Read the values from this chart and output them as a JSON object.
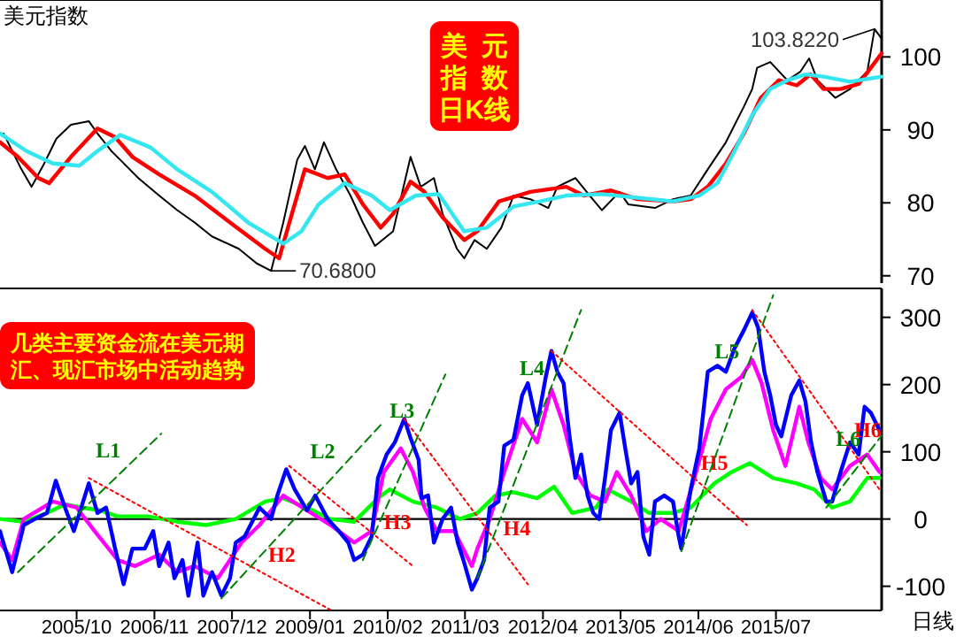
{
  "chart_data": [
    {
      "type": "line",
      "title": "美元指数",
      "xlim": [
        "2004-09-06",
        "2016-12-20"
      ],
      "ylim": [
        69,
        107.8
      ],
      "yticks": [
        70,
        80,
        90,
        100
      ],
      "tick_labels": "y",
      "annotations": [
        "美元指数日K线",
        {
          "text": "70.6800",
          "x": "2008-06-17",
          "y": 70.68
        },
        {
          "text": "103.8220",
          "x": "2016-11-14",
          "y": 103.822
        }
      ],
      "series": [
        {
          "color": "#000000",
          "x": [
            "2004-09-24",
            "2004-12-24",
            "2005-02-14",
            "2005-04-19",
            "2005-06-20",
            "2005-09-02",
            "2005-12-02",
            "2006-01-15",
            "2006-03-27",
            "2006-05-11",
            "2006-08-11",
            "2006-11-25",
            "2007-02-25",
            "2007-05-25",
            "2007-08-21",
            "2008-01-05",
            "2008-04-05",
            "2008-06-17",
            "2008-08-18",
            "2008-10-28",
            "2008-12-06",
            "2009-01-26",
            "2009-03-13",
            "2009-05-14",
            "2009-07-26",
            "2009-09-27",
            "2009-11-28",
            "2010-02-28",
            "2010-05-28",
            "2010-07-19",
            "2010-09-24",
            "2010-11-07",
            "2011-01-19",
            "2011-02-25",
            "2011-04-19",
            "2011-06-20",
            "2011-09-02",
            "2011-11-03",
            "2012-01-28",
            "2012-04-28",
            "2012-06-13",
            "2012-09-13",
            "2012-11-25",
            "2013-01-26",
            "2013-04-26",
            "2013-06-09",
            "2013-10-23",
            "2014-01-23",
            "2014-04-23",
            "2014-07-19",
            "2014-10-19",
            "2015-01-19",
            "2015-03-02",
            "2015-03-27",
            "2015-06-02",
            "2015-08-28",
            "2015-11-03",
            "2015-12-17",
            "2016-01-28",
            "2016-04-28",
            "2016-07-12",
            "2016-10-08",
            "2016-11-14",
            "2016-12-20"
          ],
          "values": [
            89.5,
            84.6,
            82.2,
            85.4,
            88.8,
            90.7,
            91.2,
            89.5,
            87.1,
            85.9,
            83.4,
            81.0,
            79.0,
            77.3,
            75.4,
            73.7,
            71.7,
            70.68,
            77.3,
            85.9,
            87.8,
            84.6,
            88.3,
            84.6,
            81.0,
            77.3,
            74.1,
            76.1,
            86.3,
            82.2,
            83.4,
            78.5,
            73.7,
            72.4,
            74.9,
            73.7,
            76.6,
            81.0,
            80.5,
            79.3,
            82.2,
            83.4,
            81.0,
            79.0,
            81.5,
            79.8,
            79.3,
            80.5,
            81.0,
            84.6,
            88.3,
            93.2,
            95.6,
            98.5,
            99.3,
            96.8,
            98.0,
            99.8,
            96.8,
            94.4,
            95.6,
            98.0,
            103.822,
            102.5
          ]
        },
        {
          "color": "#ff0000",
          "x": [
            "2004-09-06",
            "2004-12-06",
            "2005-03-20",
            "2005-05-14",
            "2005-09-02",
            "2006-01-15",
            "2006-04-15",
            "2006-07-12",
            "2006-11-25",
            "2007-05-25",
            "2007-11-21",
            "2008-05-18",
            "2008-07-28",
            "2008-10-01",
            "2008-12-06",
            "2009-04-01",
            "2009-06-27",
            "2009-09-27",
            "2009-12-27",
            "2010-02-28",
            "2010-05-28",
            "2010-08-07",
            "2010-11-07",
            "2011-02-25",
            "2011-05-03",
            "2011-08-21",
            "2012-01-28",
            "2012-07-28",
            "2012-10-26",
            "2013-03-13",
            "2013-07-26",
            "2014-01-23",
            "2014-04-23",
            "2014-07-19",
            "2014-10-19",
            "2015-01-19",
            "2015-04-15",
            "2015-07-15",
            "2015-10-15",
            "2015-12-24",
            "2016-02-28",
            "2016-05-25",
            "2016-08-25",
            "2016-10-26",
            "2016-12-20"
          ],
          "values": [
            88.3,
            86.3,
            83.4,
            82.7,
            86.3,
            90.2,
            89.0,
            86.3,
            83.9,
            81.0,
            77.3,
            73.7,
            72.4,
            78.5,
            84.6,
            83.4,
            83.9,
            79.8,
            76.6,
            78.5,
            82.9,
            81.5,
            78.0,
            74.9,
            76.1,
            80.2,
            81.5,
            82.2,
            81.0,
            81.7,
            80.5,
            80.2,
            80.5,
            82.2,
            85.4,
            89.5,
            94.4,
            96.8,
            96.1,
            97.6,
            95.6,
            95.6,
            96.3,
            98.5,
            100.5
          ]
        },
        {
          "color": "#33e6f0",
          "x": [
            "2004-09-06",
            "2005-01-19",
            "2005-06-02",
            "2005-10-15",
            "2006-01-15",
            "2006-05-11",
            "2006-10-12",
            "2007-02-25",
            "2007-08-21",
            "2008-02-21",
            "2008-08-18",
            "2008-11-18",
            "2009-02-14",
            "2009-06-27",
            "2009-11-11",
            "2010-02-11",
            "2010-06-24",
            "2010-10-19",
            "2011-02-25",
            "2011-06-20",
            "2011-11-03",
            "2012-03-17",
            "2012-07-28",
            "2013-01-26",
            "2013-07-26",
            "2014-01-23",
            "2014-06-06",
            "2014-09-06",
            "2014-12-02",
            "2015-03-02",
            "2015-06-02",
            "2015-08-28",
            "2015-11-28",
            "2016-02-28",
            "2016-07-12",
            "2016-12-20"
          ],
          "values": [
            89.5,
            87.1,
            85.4,
            85.1,
            87.1,
            89.3,
            87.6,
            84.6,
            81.5,
            77.3,
            74.4,
            76.1,
            79.8,
            82.7,
            81.0,
            79.0,
            81.0,
            81.2,
            76.1,
            76.6,
            79.5,
            80.2,
            81.0,
            81.2,
            80.7,
            80.2,
            81.0,
            82.7,
            87.1,
            92.0,
            95.6,
            96.8,
            97.6,
            97.3,
            96.6,
            97.3
          ]
        }
      ]
    },
    {
      "type": "line",
      "title": "几类主要资金流在美元期汇、现汇市场中活动趋势",
      "xlim": [
        "2004-09-06",
        "2016-12-20"
      ],
      "ylim": [
        -136,
        343
      ],
      "yticks": [
        -100,
        0,
        100,
        200,
        300
      ],
      "xticks": [
        {
          "value": "2005-10",
          "label": "2005/10"
        },
        {
          "value": "2006-11",
          "label": "2006/11"
        },
        {
          "value": "2007-12",
          "label": "2007/12"
        },
        {
          "value": "2009-01",
          "label": "2009/01"
        },
        {
          "value": "2010-02",
          "label": "2010/02"
        },
        {
          "value": "2011-03",
          "label": "2011/03"
        },
        {
          "value": "2012-04",
          "label": "2012/04"
        },
        {
          "value": "2013-05",
          "label": "2013/05"
        },
        {
          "value": "2014-06",
          "label": "2014/06"
        },
        {
          "value": "2015-07",
          "label": "2015/07"
        }
      ],
      "annotations": [
        "日线"
      ],
      "ref_lines": [
        {
          "axis": "y",
          "value": 0,
          "color": "#000000"
        }
      ],
      "series": [
        {
          "color": "#00ff00",
          "x": [
            "2004-09-06",
            "2005-01-05",
            "2005-05-03",
            "2005-08-03",
            "2005-10-28",
            "2006-01-28",
            "2006-04-28",
            "2006-09-27",
            "2007-02-25",
            "2007-07-23",
            "2007-12-20",
            "2008-05-18",
            "2008-08-18",
            "2008-12-17",
            "2009-04-15",
            "2009-08-14",
            "2009-12-13",
            "2010-02-11",
            "2010-06-09",
            "2010-10-08",
            "2011-02-03",
            "2011-05-03",
            "2011-08-03",
            "2011-11-03",
            "2012-03-02",
            "2012-05-28",
            "2012-08-28",
            "2012-12-27",
            "2013-02-25",
            "2013-06-24",
            "2013-09-24",
            "2014-01-23",
            "2014-04-23",
            "2014-08-21",
            "2014-11-18",
            "2015-02-18",
            "2015-06-17",
            "2015-10-15",
            "2016-01-12",
            "2016-04-12",
            "2016-07-12",
            "2016-10-08",
            "2016-12-09"
          ],
          "values": [
            0,
            -4,
            9,
            22,
            17,
            13,
            4,
            4,
            -4,
            -9,
            0,
            26,
            31,
            17,
            0,
            -4,
            31,
            44,
            26,
            17,
            0,
            9,
            35,
            40,
            31,
            48,
            9,
            17,
            44,
            26,
            9,
            9,
            17,
            53,
            70,
            83,
            61,
            53,
            44,
            17,
            26,
            61,
            61
          ]
        },
        {
          "color": "#ff00ff",
          "x": [
            "2004-09-06",
            "2004-11-07",
            "2005-01-05",
            "2005-06-02",
            "2005-10-01",
            "2006-01-01",
            "2006-04-28",
            "2006-07-26",
            "2006-11-25",
            "2007-02-25",
            "2007-05-25",
            "2007-09-20",
            "2008-01-19",
            "2008-04-19",
            "2008-08-18",
            "2008-12-17",
            "2009-04-15",
            "2009-08-14",
            "2009-11-11",
            "2010-01-12",
            "2010-04-08",
            "2010-06-09",
            "2010-08-07",
            "2010-10-08",
            "2011-01-05",
            "2011-04-05",
            "2011-05-03",
            "2011-07-05",
            "2011-09-17",
            "2011-12-17",
            "2012-03-02",
            "2012-05-14",
            "2012-07-15",
            "2012-09-13",
            "2012-11-28",
            "2013-02-11",
            "2013-04-12",
            "2013-06-24",
            "2013-09-09",
            "2013-11-21",
            "2014-02-21",
            "2014-05-21",
            "2014-08-03",
            "2014-10-19",
            "2015-01-05",
            "2015-03-02",
            "2015-04-19",
            "2015-06-17",
            "2015-08-18",
            "2015-10-28",
            "2015-12-13",
            "2016-02-14",
            "2016-04-12",
            "2016-07-12",
            "2016-10-08",
            "2016-12-09"
          ],
          "values": [
            -35,
            -61,
            0,
            26,
            17,
            -18,
            -61,
            -70,
            -53,
            -79,
            -70,
            -88,
            -35,
            -9,
            35,
            13,
            -9,
            -35,
            -18,
            70,
            105,
            70,
            17,
            -18,
            -18,
            -70,
            -44,
            0,
            70,
            149,
            114,
            193,
            140,
            70,
            35,
            26,
            70,
            35,
            -18,
            0,
            -18,
            70,
            149,
            193,
            211,
            237,
            202,
            132,
            79,
            167,
            114,
            61,
            44,
            79,
            96,
            70
          ]
        },
        {
          "color": "#0000ff",
          "x": [
            "2004-09-06",
            "2004-11-07",
            "2005-01-05",
            "2005-03-02",
            "2005-05-03",
            "2005-06-17",
            "2005-08-03",
            "2005-09-17",
            "2005-12-02",
            "2006-01-15",
            "2006-02-28",
            "2006-04-15",
            "2006-05-28",
            "2006-07-12",
            "2006-09-13",
            "2006-10-26",
            "2006-11-25",
            "2007-01-12",
            "2007-02-11",
            "2007-03-24",
            "2007-04-23",
            "2007-06-09",
            "2007-07-08",
            "2007-08-21",
            "2007-10-08",
            "2007-11-21",
            "2007-12-20",
            "2008-02-03",
            "2008-04-19",
            "2008-06-17",
            "2008-07-19",
            "2008-09-02",
            "2008-10-15",
            "2008-12-17",
            "2009-01-28",
            "2009-04-01",
            "2009-05-28",
            "2009-07-15",
            "2009-08-14",
            "2009-09-27",
            "2009-11-11",
            "2009-12-13",
            "2010-01-26",
            "2010-03-09",
            "2010-04-26",
            "2010-05-25",
            "2010-07-08",
            "2010-07-23",
            "2010-08-25",
            "2010-09-24",
            "2010-11-07",
            "2010-12-20",
            "2011-01-23",
            "2011-02-21",
            "2011-04-05",
            "2011-05-03",
            "2011-06-06",
            "2011-07-05",
            "2011-08-18",
            "2011-09-17",
            "2011-11-03",
            "2011-12-17",
            "2012-01-15",
            "2012-03-02",
            "2012-04-15",
            "2012-05-14",
            "2012-06-13",
            "2012-07-15",
            "2012-08-14",
            "2012-09-13",
            "2012-10-12",
            "2012-11-14",
            "2012-12-13",
            "2013-01-12",
            "2013-02-11",
            "2013-03-13",
            "2013-04-26",
            "2013-05-25",
            "2013-06-24",
            "2013-07-26",
            "2013-08-25",
            "2013-09-24",
            "2013-10-23",
            "2013-12-09",
            "2014-01-23",
            "2014-02-21",
            "2014-03-06",
            "2014-04-23",
            "2014-06-06",
            "2014-07-19",
            "2014-09-06",
            "2014-10-19",
            "2014-12-02",
            "2015-01-19",
            "2015-03-02",
            "2015-04-01",
            "2015-05-03",
            "2015-06-02",
            "2015-07-01",
            "2015-07-28",
            "2015-09-17",
            "2015-10-28",
            "2015-11-28",
            "2015-12-27",
            "2016-01-28",
            "2016-03-13",
            "2016-04-12",
            "2016-05-25",
            "2016-07-12",
            "2016-08-25",
            "2016-09-24",
            "2016-10-26",
            "2016-12-09"
          ],
          "values": [
            -18,
            -79,
            -9,
            0,
            9,
            57,
            17,
            -18,
            53,
            9,
            17,
            -44,
            -97,
            -44,
            -44,
            -18,
            -70,
            -35,
            -88,
            -61,
            -114,
            -35,
            -114,
            -79,
            -114,
            -88,
            -35,
            -26,
            17,
            0,
            35,
            74,
            44,
            13,
            35,
            0,
            -18,
            -35,
            -61,
            -53,
            -26,
            61,
            96,
            114,
            149,
            123,
            88,
            31,
            35,
            -35,
            0,
            17,
            -35,
            -61,
            -105,
            -88,
            -61,
            17,
            26,
            109,
            118,
            184,
            202,
            140,
            211,
            250,
            219,
            202,
            123,
            61,
            96,
            35,
            9,
            0,
            61,
            132,
            158,
            105,
            53,
            70,
            -26,
            -53,
            26,
            35,
            26,
            -26,
            -44,
            44,
            105,
            219,
            228,
            219,
            254,
            281,
            307,
            285,
            219,
            184,
            140,
            123,
            184,
            206,
            175,
            114,
            70,
            26,
            26,
            70,
            114,
            96,
            167,
            158,
            132
          ]
        },
        {
          "name": "L1",
          "color": "#008000",
          "line_style": "dashed",
          "x": [
            "2004-12-06",
            "2006-12-06"
          ],
          "values": [
            -79,
            127
          ]
        },
        {
          "name": "H2",
          "color": "#ff0000",
          "line_style": "dotted",
          "x": [
            "2005-12-02",
            "2009-04-15"
          ],
          "values": [
            61,
            -135
          ]
        },
        {
          "name": "L2",
          "color": "#008000",
          "line_style": "dashed",
          "x": [
            "2007-10-08",
            "2009-12-27"
          ],
          "values": [
            -118,
            140
          ]
        },
        {
          "name": "H3",
          "color": "#ff0000",
          "line_style": "dotted",
          "x": [
            "2008-09-17",
            "2010-06-09"
          ],
          "values": [
            79,
            -70
          ]
        },
        {
          "name": "L3",
          "color": "#008000",
          "line_style": "dashed",
          "x": [
            "2009-09-27",
            "2010-11-21"
          ],
          "values": [
            -61,
            215
          ]
        },
        {
          "name": "H4",
          "color": "#ff0000",
          "line_style": "dotted",
          "x": [
            "2010-04-26",
            "2012-01-15"
          ],
          "values": [
            149,
            -97
          ]
        },
        {
          "name": "L4",
          "color": "#008000",
          "line_style": "dashed",
          "x": [
            "2011-05-03",
            "2012-10-12"
          ],
          "values": [
            -88,
            311
          ]
        },
        {
          "name": "H5",
          "color": "#ff0000",
          "line_style": "dotted",
          "x": [
            "2012-05-14",
            "2015-02-03"
          ],
          "values": [
            250,
            -9
          ]
        },
        {
          "name": "L5",
          "color": "#008000",
          "line_style": "dashed",
          "x": [
            "2014-03-06",
            "2015-06-17"
          ],
          "values": [
            -48,
            333
          ]
        },
        {
          "name": "H6",
          "color": "#ff0000",
          "line_style": "dotted",
          "x": [
            "2015-03-02",
            "2016-12-09"
          ],
          "values": [
            311,
            44
          ]
        },
        {
          "name": "L6",
          "color": "#008000",
          "line_style": "dashed",
          "x": [
            "2016-03-13",
            "2016-12-20"
          ],
          "values": [
            17,
            124
          ]
        }
      ]
    }
  ]
}
